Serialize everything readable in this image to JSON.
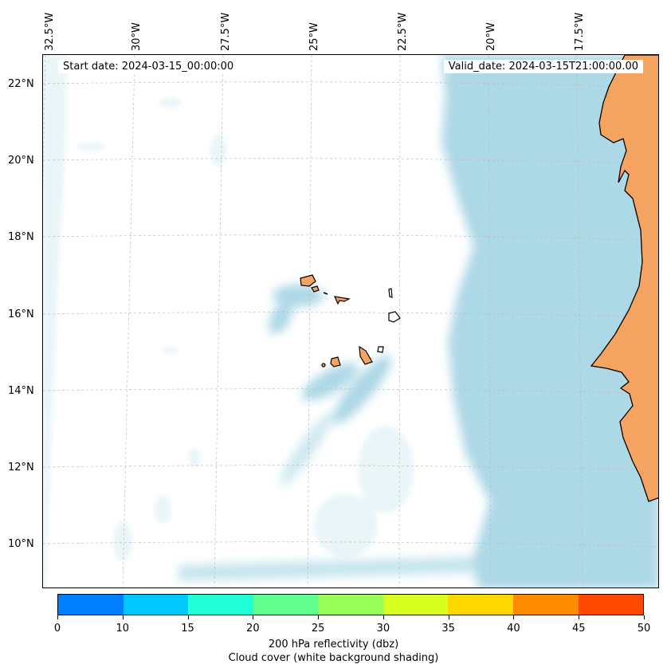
{
  "header": {
    "start_date": "Start date: 2024-03-15_00:00:00",
    "valid_date": "Valid_date: 2024-03-15T21:00:00.00"
  },
  "map": {
    "lon_labels": [
      "32.5°W",
      "30°W",
      "27.5°W",
      "25°W",
      "22.5°W",
      "20°W",
      "17.5°W"
    ],
    "lat_labels": [
      "22°N",
      "20°N",
      "18°N",
      "16°N",
      "14°N",
      "12°N",
      "10°N"
    ],
    "colors": {
      "land": "#f4a460",
      "cloud": "#add8e6",
      "ocean": "#ffffff",
      "coastline": "#000000",
      "grid": "#bbbbbb"
    }
  },
  "colorbar": {
    "ticks": [
      "0",
      "10",
      "15",
      "20",
      "25",
      "30",
      "35",
      "40",
      "45",
      "50"
    ],
    "colors": [
      "#0080ff",
      "#00c8ff",
      "#20ffd8",
      "#60ff90",
      "#98ff58",
      "#d8ff20",
      "#ffd800",
      "#ff8c00",
      "#ff4800"
    ],
    "label_line1": "200 hPa reflectivity (dbz)",
    "label_line2": "Cloud cover (white background shading)"
  }
}
